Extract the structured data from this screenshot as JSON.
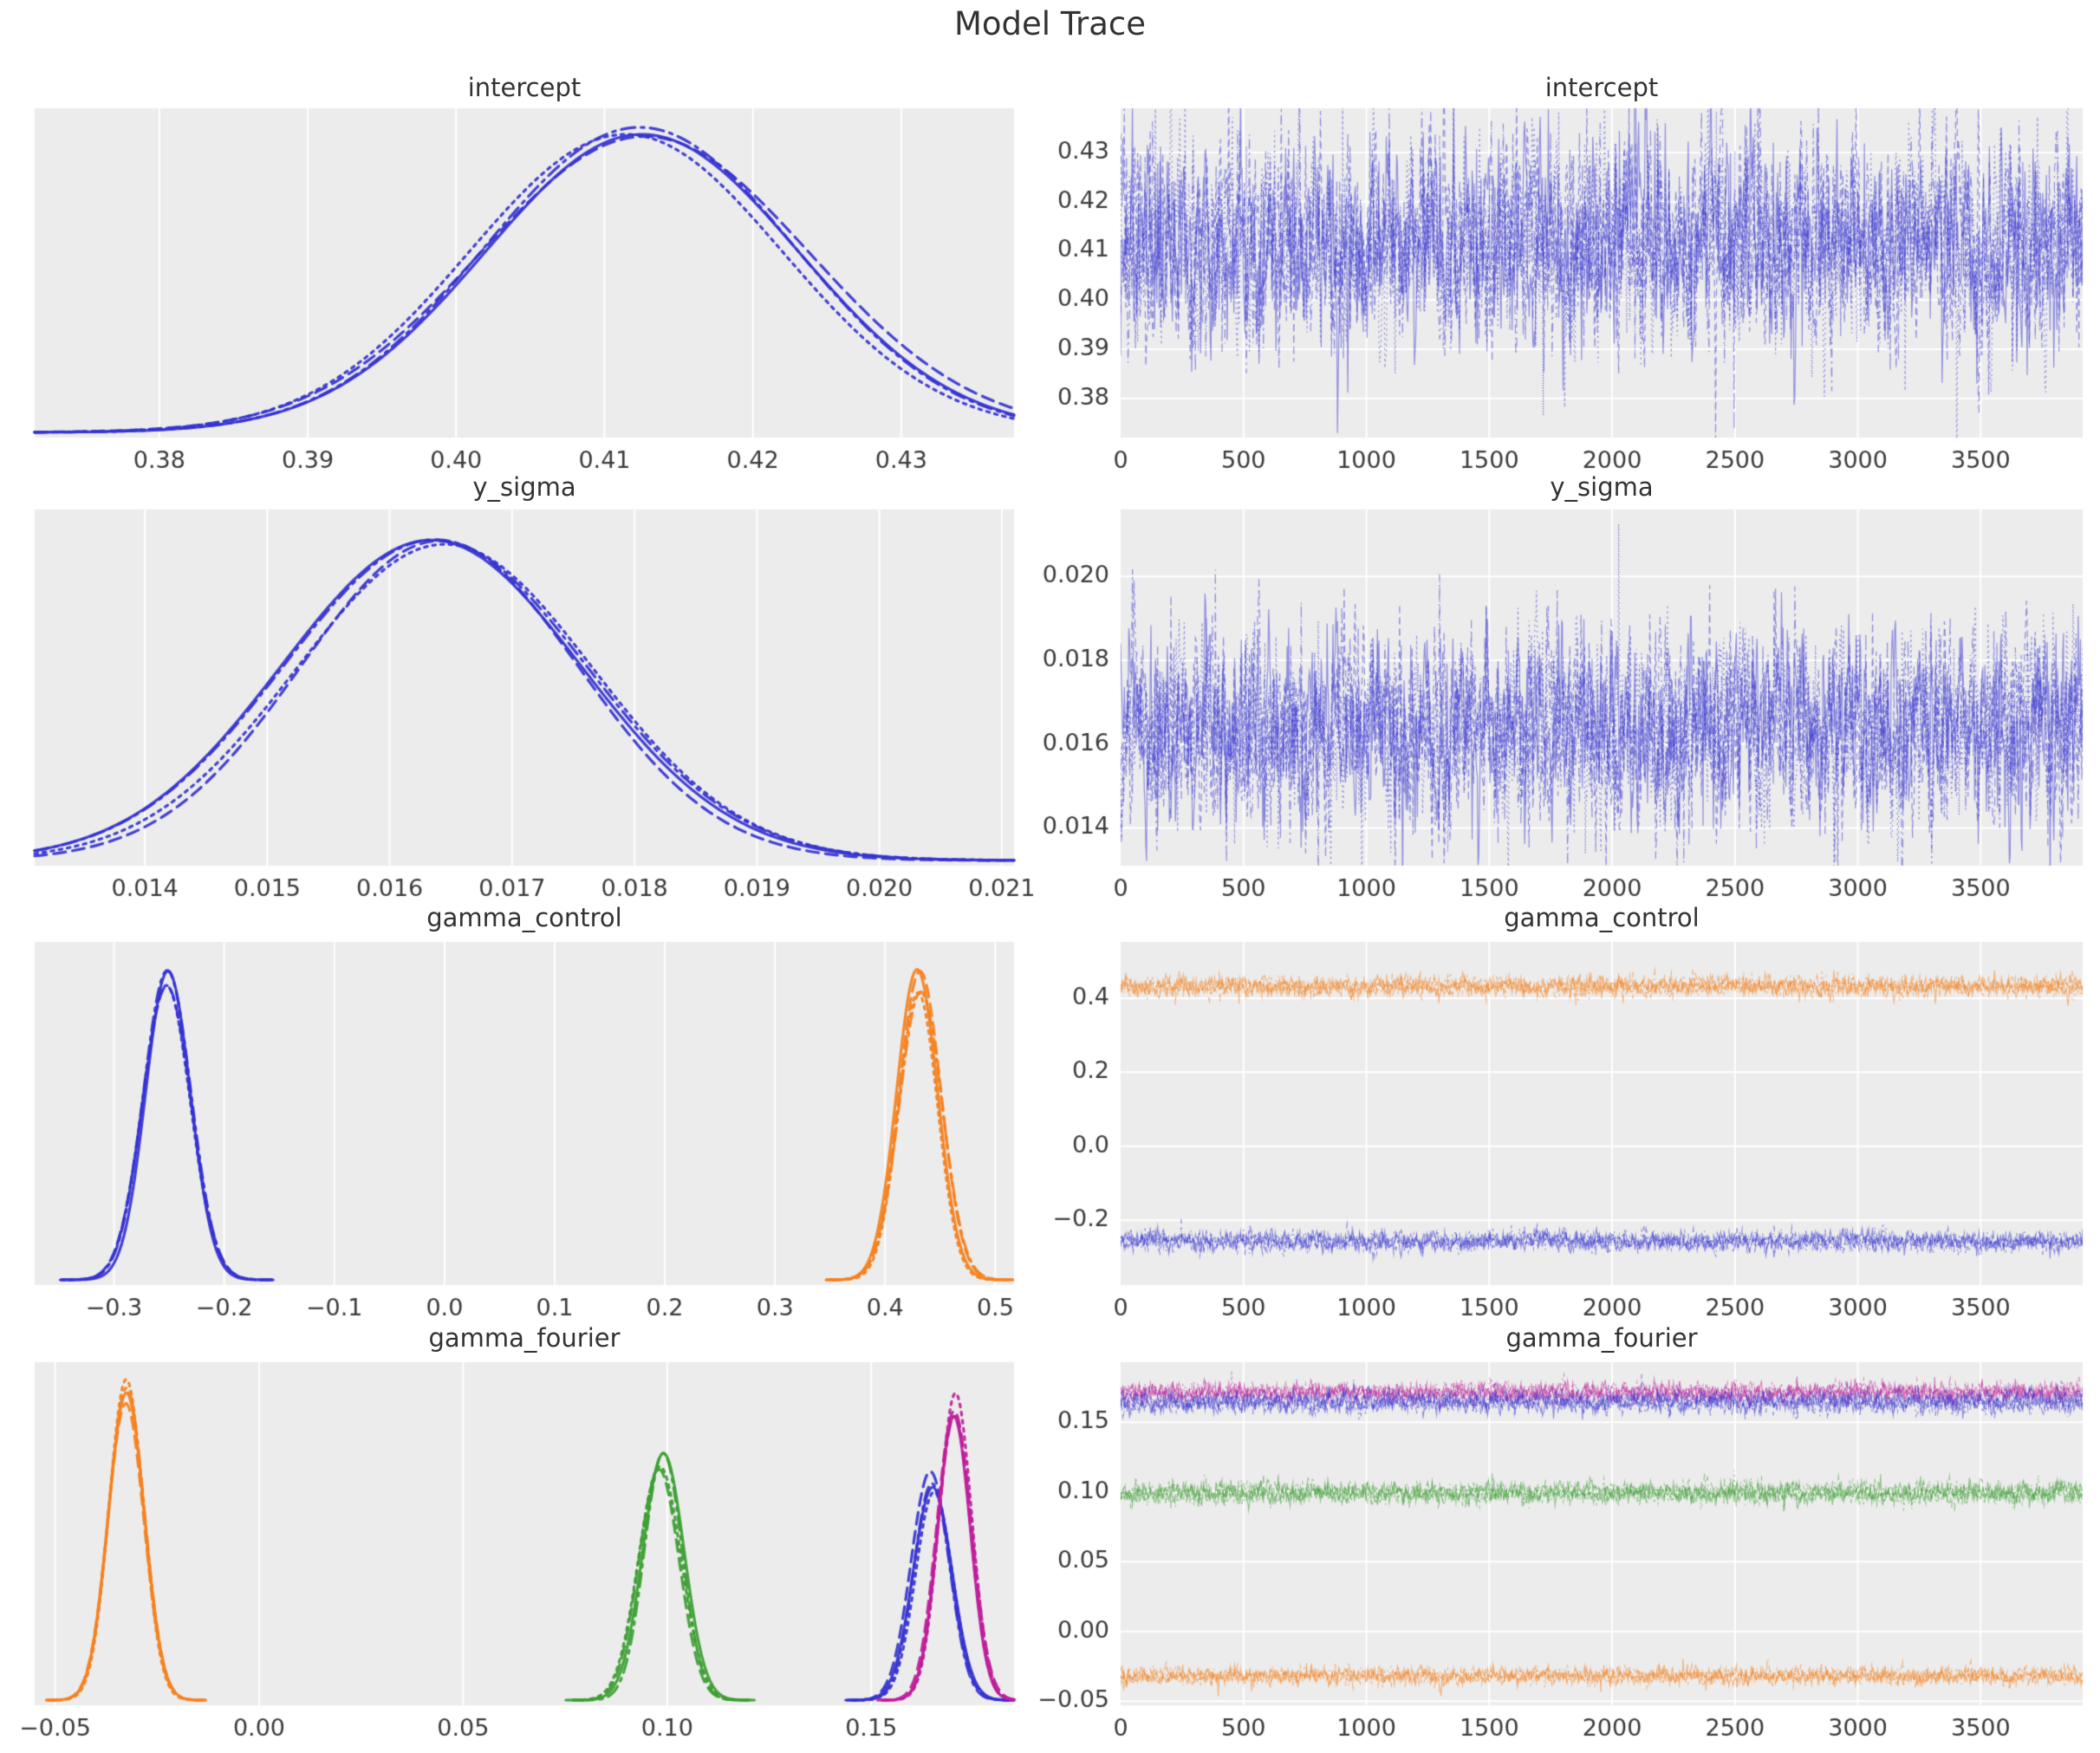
{
  "figure_title": "Model Trace",
  "style": {
    "figure_bg": "#ffffff",
    "plot_bg": "#ececec",
    "grid_color": "#ffffff",
    "title_color": "#333333",
    "tick_color": "#3d3d3d",
    "palette": {
      "blue": "#3533d1",
      "orange": "#f5811e",
      "green": "#3c9e32",
      "magenta": "#bf1d9b"
    }
  },
  "chart_data": [
    {
      "id": "intercept-kde",
      "type": "kde",
      "title": "intercept",
      "row": 0,
      "col": "left",
      "grid": "vertical",
      "legend": false,
      "n_chains": 4,
      "xlim": [
        0.3716,
        0.4376
      ],
      "xticks": [
        0.38,
        0.39,
        0.4,
        0.41,
        0.42,
        0.43
      ],
      "xtick_labels": [
        "0.38",
        "0.39",
        "0.40",
        "0.41",
        "0.42",
        "0.43"
      ],
      "series": [
        {
          "color": "blue",
          "mean": 0.4125,
          "sd": 0.0105,
          "peak": 0.96
        }
      ]
    },
    {
      "id": "intercept-trace",
      "type": "trace",
      "title": "intercept",
      "row": 0,
      "col": "right",
      "grid": "both",
      "legend": false,
      "n_chains": 4,
      "n_draws": 3900,
      "xlim": [
        0,
        3915
      ],
      "ylim": [
        0.372,
        0.439
      ],
      "xticks": [
        0,
        500,
        1000,
        1500,
        2000,
        2500,
        3000,
        3500
      ],
      "xtick_labels": [
        "0",
        "500",
        "1000",
        "1500",
        "2000",
        "2500",
        "3000",
        "3500"
      ],
      "yticks": [
        0.43,
        0.42,
        0.41,
        0.4,
        0.39,
        0.38
      ],
      "ytick_labels": [
        "0.43",
        "0.42",
        "0.41",
        "0.40",
        "0.39",
        "0.38"
      ],
      "series": [
        {
          "color": "blue",
          "mean": 0.4115,
          "sd": 0.0102
        }
      ]
    },
    {
      "id": "y_sigma-kde",
      "type": "kde",
      "title": "y_sigma",
      "row": 1,
      "col": "left",
      "grid": "vertical",
      "legend": false,
      "n_chains": 4,
      "xlim": [
        0.0131,
        0.0211
      ],
      "xticks": [
        0.014,
        0.015,
        0.016,
        0.017,
        0.018,
        0.019,
        0.02,
        0.021
      ],
      "xtick_labels": [
        "0.014",
        "0.015",
        "0.016",
        "0.017",
        "0.018",
        "0.019",
        "0.020",
        "0.021"
      ],
      "series": [
        {
          "color": "blue",
          "mean": 0.0164,
          "sd": 0.00115,
          "peak": 0.96
        }
      ]
    },
    {
      "id": "y_sigma-trace",
      "type": "trace",
      "title": "y_sigma",
      "row": 1,
      "col": "right",
      "grid": "both",
      "legend": false,
      "n_chains": 4,
      "n_draws": 3900,
      "xlim": [
        0,
        3915
      ],
      "ylim": [
        0.0131,
        0.0216
      ],
      "xticks": [
        0,
        500,
        1000,
        1500,
        2000,
        2500,
        3000,
        3500
      ],
      "xtick_labels": [
        "0",
        "500",
        "1000",
        "1500",
        "2000",
        "2500",
        "3000",
        "3500"
      ],
      "yticks": [
        0.02,
        0.018,
        0.016,
        0.014
      ],
      "ytick_labels": [
        "0.020",
        "0.018",
        "0.016",
        "0.014"
      ],
      "series": [
        {
          "color": "blue",
          "mean": 0.0164,
          "sd": 0.00112
        }
      ]
    },
    {
      "id": "gamma_control-kde",
      "type": "kde",
      "title": "gamma_control",
      "row": 2,
      "col": "left",
      "grid": "vertical",
      "legend": false,
      "n_chains": 4,
      "xlim": [
        -0.372,
        0.517
      ],
      "xticks": [
        -0.3,
        -0.2,
        -0.1,
        0.0,
        0.1,
        0.2,
        0.3,
        0.4,
        0.5
      ],
      "xtick_labels": [
        "−0.3",
        "−0.2",
        "−0.1",
        "0.0",
        "0.1",
        "0.2",
        "0.3",
        "0.4",
        "0.5"
      ],
      "series": [
        {
          "color": "blue",
          "mean": -0.25,
          "sd": 0.021,
          "peak": 0.94
        },
        {
          "color": "orange",
          "mean": 0.431,
          "sd": 0.019,
          "peak": 0.94
        }
      ]
    },
    {
      "id": "gamma_control-trace",
      "type": "trace",
      "title": "gamma_control",
      "row": 2,
      "col": "right",
      "grid": "both",
      "legend": false,
      "n_chains": 4,
      "n_draws": 3900,
      "xlim": [
        0,
        3915
      ],
      "ylim": [
        -0.375,
        0.552
      ],
      "xticks": [
        0,
        500,
        1000,
        1500,
        2000,
        2500,
        3000,
        3500
      ],
      "xtick_labels": [
        "0",
        "500",
        "1000",
        "1500",
        "2000",
        "2500",
        "3000",
        "3500"
      ],
      "yticks": [
        0.4,
        0.2,
        0.0,
        -0.2
      ],
      "ytick_labels": [
        "0.4",
        "0.2",
        "0.0",
        "−0.2"
      ],
      "series": [
        {
          "color": "orange",
          "mean": 0.432,
          "sd": 0.0125
        },
        {
          "color": "blue",
          "mean": -0.257,
          "sd": 0.0125
        }
      ]
    },
    {
      "id": "gamma_fourier-kde",
      "type": "kde",
      "title": "gamma_fourier",
      "row": 3,
      "col": "left",
      "grid": "vertical",
      "legend": false,
      "n_chains": 4,
      "xlim": [
        -0.055,
        0.185
      ],
      "xticks": [
        -0.05,
        0.0,
        0.05,
        0.1,
        0.15
      ],
      "xtick_labels": [
        "−0.05",
        "0.00",
        "0.05",
        "0.10",
        "0.15"
      ],
      "series": [
        {
          "color": "orange",
          "mean": -0.033,
          "sd": 0.0045,
          "peak": 0.97
        },
        {
          "color": "green",
          "mean": 0.0985,
          "sd": 0.005,
          "peak": 0.74
        },
        {
          "color": "blue",
          "mean": 0.165,
          "sd": 0.0048,
          "peak": 0.68
        },
        {
          "color": "magenta",
          "mean": 0.1705,
          "sd": 0.004,
          "peak": 0.93
        }
      ]
    },
    {
      "id": "gamma_fourier-trace",
      "type": "trace",
      "title": "gamma_fourier",
      "row": 3,
      "col": "right",
      "grid": "both",
      "legend": false,
      "n_chains": 4,
      "n_draws": 3900,
      "xlim": [
        0,
        3915
      ],
      "ylim": [
        -0.053,
        0.193
      ],
      "xticks": [
        0,
        500,
        1000,
        1500,
        2000,
        2500,
        3000,
        3500
      ],
      "xtick_labels": [
        "0",
        "500",
        "1000",
        "1500",
        "2000",
        "2500",
        "3000",
        "3500"
      ],
      "yticks": [
        0.15,
        0.1,
        0.05,
        0.0,
        -0.05
      ],
      "ytick_labels": [
        "0.15",
        "0.10",
        "0.05",
        "0.00",
        "−0.05"
      ],
      "series": [
        {
          "color": "magenta",
          "mean": 0.1715,
          "sd": 0.0032
        },
        {
          "color": "blue",
          "mean": 0.1645,
          "sd": 0.0036
        },
        {
          "color": "green",
          "mean": 0.0993,
          "sd": 0.0036
        },
        {
          "color": "orange",
          "mean": -0.032,
          "sd": 0.0028
        }
      ]
    }
  ]
}
